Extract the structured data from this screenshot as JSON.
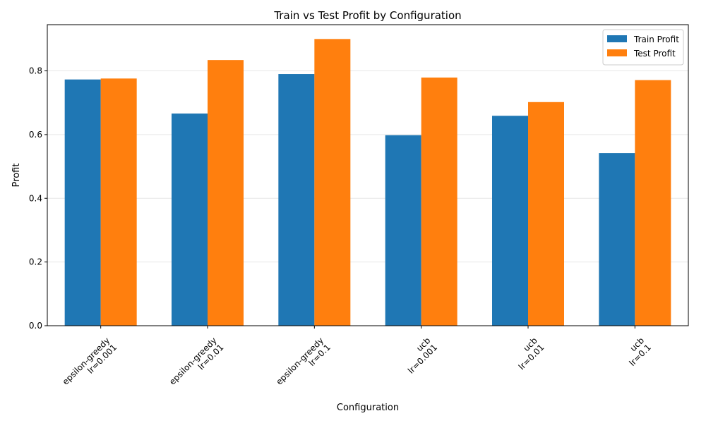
{
  "chart_data": {
    "type": "bar",
    "title": "Train vs Test Profit by Configuration",
    "xlabel": "Configuration",
    "ylabel": "Profit",
    "categories": [
      [
        "epsilon-greedy",
        "lr=0.001"
      ],
      [
        "epsilon-greedy",
        "lr=0.01"
      ],
      [
        "epsilon-greedy",
        "lr=0.1"
      ],
      [
        "ucb",
        "lr=0.001"
      ],
      [
        "ucb",
        "lr=0.01"
      ],
      [
        "ucb",
        "lr=0.1"
      ]
    ],
    "series": [
      {
        "name": "Train Profit",
        "color": "#1f77b4",
        "values": [
          0.773,
          0.666,
          0.79,
          0.598,
          0.659,
          0.542
        ]
      },
      {
        "name": "Test Profit",
        "color": "#ff7f0e",
        "values": [
          0.776,
          0.834,
          0.9,
          0.779,
          0.702,
          0.771
        ]
      }
    ],
    "ylim": [
      0,
      0.945
    ],
    "yticks": [
      "0.0",
      "0.2",
      "0.4",
      "0.6",
      "0.8"
    ],
    "grid": "y",
    "legend": "top-right"
  }
}
